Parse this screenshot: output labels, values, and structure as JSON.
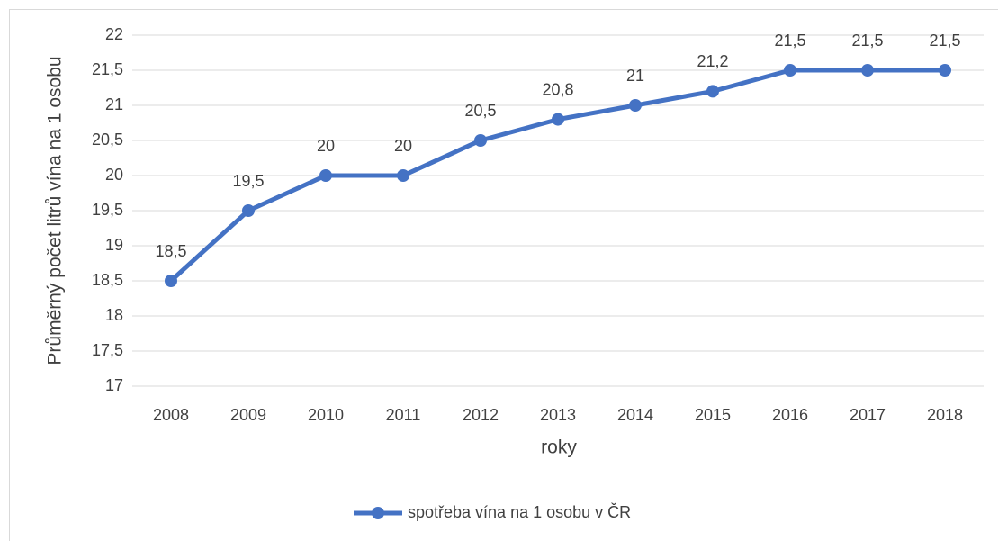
{
  "chart_data": {
    "type": "line",
    "categories": [
      "2008",
      "2009",
      "2010",
      "2011",
      "2012",
      "2013",
      "2014",
      "2015",
      "2016",
      "2017",
      "2018"
    ],
    "series": [
      {
        "name": "spotřeba vína na 1 osobu v ČR",
        "color": "#4472c4",
        "values": [
          18.5,
          19.5,
          20,
          20,
          20.5,
          20.8,
          21,
          21.2,
          21.5,
          21.5,
          21.5
        ],
        "value_labels": [
          "18,5",
          "19,5",
          "20",
          "20",
          "20,5",
          "20,8",
          "21",
          "21,2",
          "21,5",
          "21,5",
          "21,5"
        ]
      }
    ],
    "xlabel": "roky",
    "ylabel": "Průměrný počet litrů vína na 1 osobu",
    "ylim": [
      17,
      22
    ],
    "yticks": [
      17,
      {
        "value": 17.5,
        "label": "17,5"
      },
      18,
      {
        "value": 18.5,
        "label": "18,5"
      },
      19,
      {
        "value": 19.5,
        "label": "19,5"
      },
      20,
      {
        "value": 20.5,
        "label": "20,5"
      },
      21,
      {
        "value": 21.5,
        "label": "21,5"
      },
      22
    ],
    "grid": true,
    "legend": "bottom"
  }
}
